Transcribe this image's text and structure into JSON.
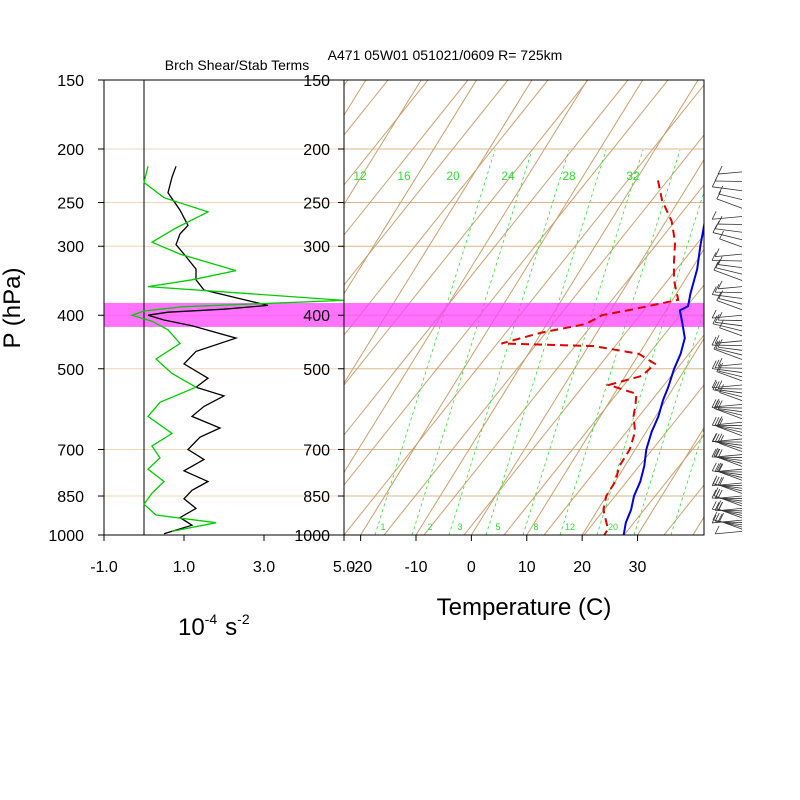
{
  "title": "A471 05W01 051021/0609 R= 725km",
  "left_panel_title": "Brch Shear/Stab Terms",
  "y_axis_label": "P (hPa)",
  "left_x_axis_label": "10",
  "left_x_axis_label_exp": "-4",
  "left_x_axis_label_unit": "s",
  "left_x_axis_label_unit_exp": "-2",
  "right_x_axis_label": "Temperature (C)",
  "colors": {
    "temperature": "#e00000",
    "dewpoint_or_temp": "#0000dd",
    "shear_term": "#000000",
    "stability_term": "#00cc00",
    "highlight_band": "#ff44ff",
    "skewt_grid": "#c8a070",
    "mixing_ratio": "#33dd33"
  },
  "chart_data": [
    {
      "type": "line",
      "panel": "left",
      "title": "Brch Shear/Stab Terms",
      "xlabel": "10^-4 s^-2",
      "ylabel": "P (hPa)",
      "xlim": [
        -1.0,
        5.0
      ],
      "y_scale": "log",
      "ylim": [
        1000,
        150
      ],
      "x_tick_labels": [
        "-1.0",
        "1.0",
        "3.0",
        "5.0"
      ],
      "x_ticks": [
        -1.0,
        1.0,
        3.0,
        5.0
      ],
      "y_ticks": [
        150,
        200,
        250,
        300,
        400,
        500,
        700,
        850,
        1000
      ],
      "y_tick_labels": [
        "150",
        "200",
        "250",
        "300",
        "400",
        "500",
        "700",
        "850",
        "1000"
      ],
      "vertical_reference_x": 0,
      "series": [
        {
          "color": "#000000",
          "points": [
            [
              0.8,
              215
            ],
            [
              0.7,
              225
            ],
            [
              0.6,
              240
            ],
            [
              0.9,
              258
            ],
            [
              1.1,
              275
            ],
            [
              0.9,
              285
            ],
            [
              0.8,
              298
            ],
            [
              1.0,
              310
            ],
            [
              1.3,
              330
            ],
            [
              1.3,
              345
            ],
            [
              1.5,
              360
            ],
            [
              2.3,
              372
            ],
            [
              3.1,
              384
            ],
            [
              2.0,
              390
            ],
            [
              0.6,
              395
            ],
            [
              0.1,
              400
            ],
            [
              0.5,
              408
            ],
            [
              1.2,
              418
            ],
            [
              2.3,
              440
            ],
            [
              1.3,
              465
            ],
            [
              1.0,
              490
            ],
            [
              1.6,
              520
            ],
            [
              1.3,
              540
            ],
            [
              2.0,
              560
            ],
            [
              1.5,
              585
            ],
            [
              1.2,
              610
            ],
            [
              1.9,
              640
            ],
            [
              1.4,
              665
            ],
            [
              1.1,
              700
            ],
            [
              1.5,
              730
            ],
            [
              1.0,
              765
            ],
            [
              1.6,
              800
            ],
            [
              1.2,
              830
            ],
            [
              1.0,
              860
            ],
            [
              1.3,
              895
            ],
            [
              0.9,
              930
            ],
            [
              1.2,
              960
            ],
            [
              0.5,
              995
            ]
          ]
        },
        {
          "color": "#00cc00",
          "points": [
            [
              0.1,
              215
            ],
            [
              0.0,
              230
            ],
            [
              0.5,
              245
            ],
            [
              1.6,
              260
            ],
            [
              0.8,
              278
            ],
            [
              0.2,
              295
            ],
            [
              0.9,
              310
            ],
            [
              2.3,
              332
            ],
            [
              1.2,
              345
            ],
            [
              0.1,
              355
            ],
            [
              2.5,
              365
            ],
            [
              5.0,
              376
            ],
            [
              1.0,
              386
            ],
            [
              0.0,
              393
            ],
            [
              -0.3,
              400
            ],
            [
              0.2,
              410
            ],
            [
              0.6,
              425
            ],
            [
              0.9,
              450
            ],
            [
              0.3,
              480
            ],
            [
              0.7,
              510
            ],
            [
              1.3,
              540
            ],
            [
              0.4,
              575
            ],
            [
              0.1,
              610
            ],
            [
              0.7,
              655
            ],
            [
              0.2,
              690
            ],
            [
              0.4,
              725
            ],
            [
              0.1,
              760
            ],
            [
              0.5,
              800
            ],
            [
              0.2,
              840
            ],
            [
              0.0,
              880
            ],
            [
              0.3,
              920
            ],
            [
              1.8,
              950
            ],
            [
              0.7,
              985
            ]
          ]
        }
      ]
    },
    {
      "type": "line",
      "panel": "right",
      "title": "A471 05W01 051021/0609 R= 725km",
      "xlabel": "Temperature (C)",
      "ylabel": "P (hPa)",
      "xlim": [
        -23,
        42
      ],
      "x_tick_labels": [
        "-20",
        "-10",
        "0",
        "10",
        "20",
        "30"
      ],
      "x_ticks": [
        -20,
        -10,
        0,
        10,
        20,
        30
      ],
      "y_scale": "log",
      "ylim": [
        1000,
        150
      ],
      "y_ticks": [
        150,
        200,
        250,
        300,
        400,
        500,
        700,
        850,
        1000
      ],
      "y_tick_labels": [
        "150",
        "200",
        "250",
        "300",
        "400",
        "500",
        "700",
        "850",
        "1000"
      ],
      "highlight_band_hpa": [
        380,
        420
      ],
      "mixing_ratio_labels_top": [
        "12",
        "16",
        "20",
        "24",
        "28",
        "32"
      ],
      "mixing_ratio_labels_bottom": [
        "1",
        "2",
        "3",
        "5",
        "8",
        "12",
        "20"
      ],
      "series": [
        {
          "color": "#0000dd",
          "style": "solid",
          "points": [
            [
              1.5,
              210
            ],
            [
              3,
              225
            ],
            [
              5,
              245
            ],
            [
              7,
              270
            ],
            [
              9,
              300
            ],
            [
              11,
              330
            ],
            [
              12.5,
              365
            ],
            [
              13.5,
              385
            ],
            [
              12.5,
              392
            ],
            [
              14.5,
              415
            ],
            [
              16.5,
              440
            ],
            [
              17.5,
              470
            ],
            [
              18,
              500
            ],
            [
              19,
              540
            ],
            [
              19.5,
              570
            ],
            [
              20.5,
              610
            ],
            [
              21,
              650
            ],
            [
              22,
              700
            ],
            [
              23.5,
              750
            ],
            [
              24.5,
              800
            ],
            [
              25,
              850
            ],
            [
              26,
              900
            ],
            [
              26.5,
              950
            ],
            [
              27.5,
              1000
            ]
          ]
        },
        {
          "color": "#e00000",
          "style": "dashed",
          "points": [
            [
              -6,
              228
            ],
            [
              -3,
              248
            ],
            [
              1,
              270
            ],
            [
              4,
              295
            ],
            [
              6,
              320
            ],
            [
              8,
              345
            ],
            [
              11,
              375
            ],
            [
              4,
              390
            ],
            [
              -1,
              400
            ],
            [
              -3,
              415
            ],
            [
              -10,
              430
            ],
            [
              -16,
              450
            ],
            [
              1,
              455
            ],
            [
              10,
              470
            ],
            [
              14,
              490
            ],
            [
              13,
              515
            ],
            [
              8,
              535
            ],
            [
              14,
              555
            ],
            [
              15,
              580
            ],
            [
              16,
              610
            ],
            [
              18,
              650
            ],
            [
              19,
              700
            ],
            [
              19,
              750
            ],
            [
              20,
              800
            ],
            [
              20,
              850
            ],
            [
              21,
              900
            ],
            [
              23,
              950
            ],
            [
              24,
              975
            ],
            [
              24,
              1000
            ]
          ]
        }
      ]
    }
  ]
}
